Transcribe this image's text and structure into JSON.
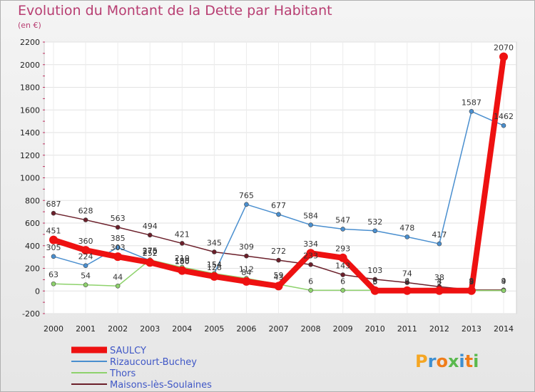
{
  "chart_data": {
    "type": "line",
    "title": "Evolution du Montant de la Dette par Habitant",
    "subtitle": "(en €)",
    "x": [
      "2000",
      "2001",
      "2002",
      "2003",
      "2004",
      "2005",
      "2006",
      "2007",
      "2008",
      "2009",
      "2010",
      "2011",
      "2012",
      "2013",
      "2014"
    ],
    "ylim": [
      -200,
      2200
    ],
    "yticks": [
      -200,
      0,
      200,
      400,
      600,
      800,
      1000,
      1200,
      1400,
      1600,
      1800,
      2000,
      2200
    ],
    "grid": true,
    "legend_position": "bottom-left",
    "series": [
      {
        "name": "Maisons-lès-Soulaines",
        "color": "#6b1f2a",
        "values": [
          687,
          628,
          563,
          494,
          421,
          345,
          309,
          272,
          233,
          143,
          103,
          74,
          38,
          9,
          9
        ],
        "labels": [
          "687",
          "628",
          "563",
          "494",
          "421",
          "345",
          "309",
          "272",
          "233",
          "143",
          "103",
          "74",
          "38",
          "9",
          "9"
        ]
      },
      {
        "name": "Rizaucourt-Buchey",
        "color": "#4a8fcf",
        "values": [
          305,
          224,
          385,
          270,
          188,
          154,
          765,
          677,
          584,
          547,
          532,
          478,
          417,
          1587,
          1462
        ],
        "labels": [
          "305",
          "224",
          "385",
          "270",
          "188",
          "154",
          "765",
          "677",
          "584",
          "547",
          "532",
          "478",
          "417",
          "1587",
          "1462"
        ]
      },
      {
        "name": "Thors",
        "color": "#8ed26c",
        "values": [
          63,
          54,
          44,
          275,
          210,
          154,
          112,
          59,
          6,
          6,
          6,
          6,
          4,
          4,
          4
        ],
        "labels": [
          "63",
          "54",
          "44",
          "275",
          "210",
          "154",
          "112",
          "59",
          "6",
          "6",
          "6",
          "6",
          "4",
          "4",
          "4"
        ]
      },
      {
        "name": "SAULCY",
        "color": "#ee1111",
        "values": [
          451,
          360,
          303,
          252,
          180,
          128,
          84,
          43,
          334,
          293,
          3,
          3,
          3,
          3,
          2070
        ],
        "labels": [
          "451",
          "360",
          "303",
          "252",
          "180",
          "128",
          "84",
          "43",
          "334",
          "293",
          "3",
          "3",
          "3",
          "3",
          "2070"
        ]
      }
    ],
    "legend": [
      "SAULCY",
      "Rizaucourt-Buchey",
      "Thors",
      "Maisons-lès-Soulaines"
    ]
  },
  "logo": {
    "text": "Proxiti"
  }
}
